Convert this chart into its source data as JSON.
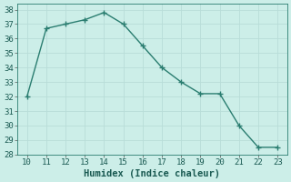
{
  "x": [
    10,
    11,
    12,
    13,
    14,
    15,
    16,
    17,
    18,
    19,
    20,
    21,
    22,
    23
  ],
  "y": [
    32.0,
    36.7,
    37.0,
    37.3,
    37.8,
    37.0,
    35.5,
    34.0,
    33.0,
    32.2,
    32.2,
    30.0,
    28.5,
    28.5
  ],
  "line_color": "#2a7d70",
  "marker_color": "#2a7d70",
  "bg_color": "#cceee8",
  "grid_color": "#b8ddd8",
  "xlabel": "Humidex (Indice chaleur)",
  "xlim": [
    9.5,
    23.5
  ],
  "ylim": [
    28,
    38.4
  ],
  "xticks": [
    10,
    11,
    12,
    13,
    14,
    15,
    16,
    17,
    18,
    19,
    20,
    21,
    22,
    23
  ],
  "yticks": [
    28,
    29,
    30,
    31,
    32,
    33,
    34,
    35,
    36,
    37,
    38
  ],
  "xlabel_fontsize": 7.5,
  "tick_fontsize": 6.5,
  "line_width": 1.0,
  "marker_size": 2.5
}
